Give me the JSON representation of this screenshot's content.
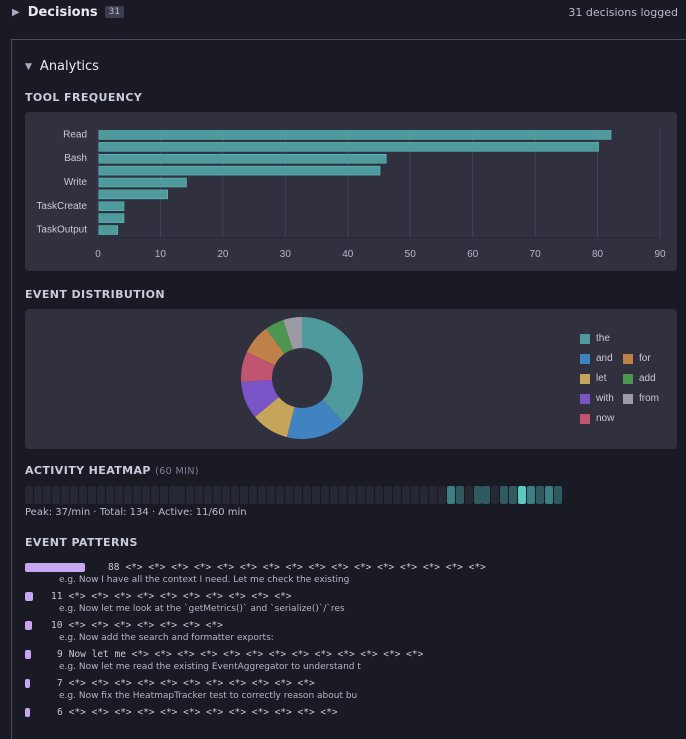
{
  "decisions": {
    "title": "Decisions",
    "count": "31",
    "summary": "31 decisions logged"
  },
  "analytics": {
    "title": "Analytics"
  },
  "tool_frequency": {
    "title": "TOOL FREQUENCY"
  },
  "event_distribution": {
    "title": "EVENT DISTRIBUTION"
  },
  "heatmap": {
    "title": "ACTIVITY HEATMAP",
    "subtitle": "(60 MIN)",
    "stats": "Peak: 37/min · Total: 134 · Active: 11/60 min",
    "minutes": 60,
    "values": [
      0,
      0,
      0,
      0,
      0,
      0,
      0,
      0,
      0,
      0,
      0,
      0,
      0,
      0,
      0,
      0,
      0,
      0,
      0,
      0,
      0,
      0,
      0,
      0,
      0,
      0,
      0,
      0,
      0,
      0,
      0,
      0,
      0,
      0,
      0,
      0,
      0,
      0,
      0,
      0,
      0,
      0,
      0,
      0,
      0,
      0,
      0,
      16,
      8,
      0,
      7,
      7,
      0,
      5,
      6,
      37,
      14,
      13,
      14,
      7
    ]
  },
  "event_patterns": {
    "title": "EVENT PATTERNS",
    "items": [
      {
        "count": "88",
        "pattern": "<*> <*> <*> <*> <*> <*> <*> <*> <*> <*> <*> <*> <*> <*> <*> <*>",
        "example": "e.g. Now I have all the context I need. Let me check the existing"
      },
      {
        "count": "11",
        "pattern": "<*> <*> <*> <*> <*> <*> <*> <*> <*> <*>",
        "example": "e.g. Now let me look at the `getMetrics()` and `serialize()`/`res"
      },
      {
        "count": "10",
        "pattern": "<*> <*> <*> <*> <*> <*> <*>",
        "example": "e.g. Now add the search and formatter exports:"
      },
      {
        "count": "9",
        "pattern": "Now let me <*> <*> <*> <*> <*> <*> <*> <*> <*> <*> <*> <*> <*>",
        "example": "e.g. Now let me read the existing EventAggregator to understand t"
      },
      {
        "count": "7",
        "pattern": "<*> <*> <*> <*> <*> <*> <*> <*> <*> <*> <*>",
        "example": "e.g. Now fix the HeatmapTracker test to correctly reason about bu"
      },
      {
        "count": "6",
        "pattern": "<*> <*> <*> <*> <*> <*> <*> <*> <*> <*> <*> <*>",
        "example": ""
      }
    ]
  },
  "colors": {
    "bar": "#4e9a9c",
    "pattern_bar": "#c7a6f2",
    "heat_low": "#2f5a60",
    "heat_mid": "#3c8085",
    "heat_high": "#5cc8c4",
    "heat_empty": "#262833"
  },
  "chart_data": [
    {
      "type": "bar",
      "orientation": "horizontal",
      "title": "TOOL FREQUENCY",
      "categories": [
        "Read",
        "",
        "Bash",
        "",
        "Write",
        "",
        "TaskCreate",
        "",
        "TaskOutput"
      ],
      "values": [
        82,
        80,
        46,
        45,
        14,
        11,
        4,
        4,
        3
      ],
      "xlim": [
        0,
        90
      ],
      "xticks": [
        "0",
        "10",
        "20",
        "30",
        "40",
        "50",
        "60",
        "70",
        "80",
        "90"
      ],
      "grid": true
    },
    {
      "type": "pie",
      "donut": true,
      "title": "EVENT DISTRIBUTION",
      "legend": "right",
      "slices": [
        {
          "label": "the",
          "value": 38,
          "color": "#4e9a9c"
        },
        {
          "label": "and",
          "value": 16,
          "color": "#3f84c0"
        },
        {
          "label": "let",
          "value": 10,
          "color": "#c4a55a"
        },
        {
          "label": "with",
          "value": 10,
          "color": "#7b55c8"
        },
        {
          "label": "now",
          "value": 8,
          "color": "#c05570"
        },
        {
          "label": "for",
          "value": 8,
          "color": "#c0804a"
        },
        {
          "label": "add",
          "value": 5,
          "color": "#4c9650"
        },
        {
          "label": "from",
          "value": 5,
          "color": "#9a9ba4"
        }
      ]
    }
  ]
}
